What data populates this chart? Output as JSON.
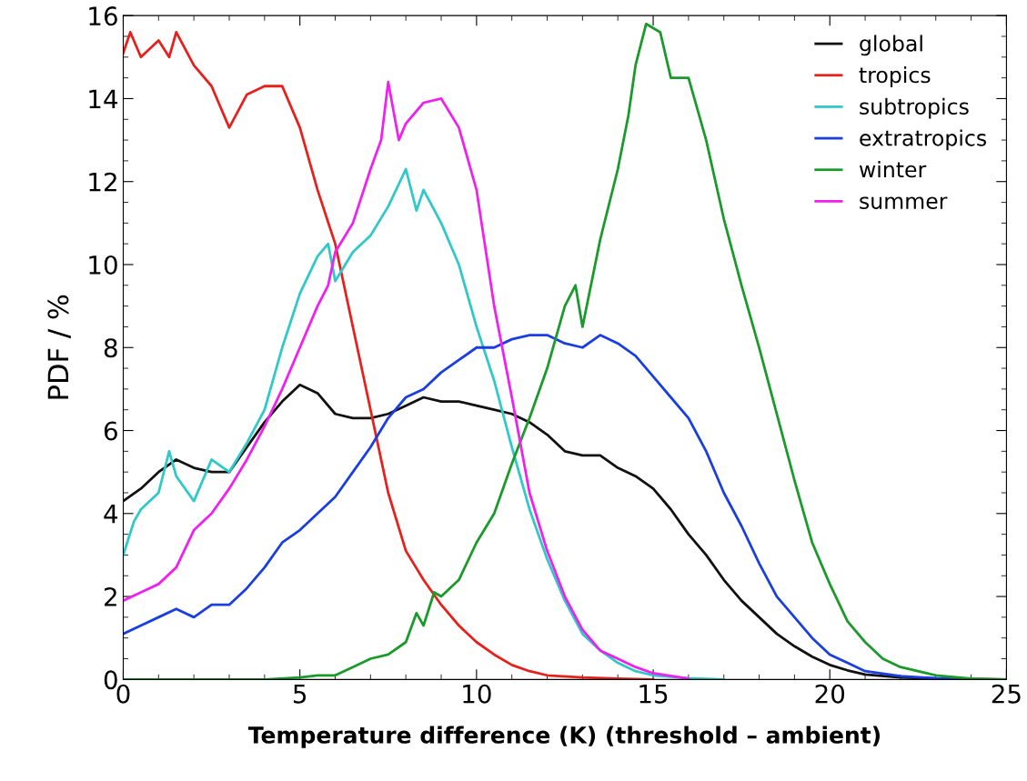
{
  "chart_data": {
    "type": "line",
    "xlabel": "Temperature difference (K) (threshold – ambient)",
    "ylabel": "PDF / %",
    "xlim": [
      0,
      25
    ],
    "xticks": [
      0,
      5,
      10,
      15,
      20,
      25
    ],
    "ylim": [
      0,
      16
    ],
    "yticks": [
      0,
      2,
      4,
      6,
      8,
      10,
      12,
      14,
      16
    ],
    "legend": "top right",
    "grid": false,
    "marker": "none",
    "line_style": "solid",
    "series": [
      {
        "name": "global",
        "color": "#111111",
        "x": [
          0,
          0.5,
          1,
          1.5,
          2,
          2.5,
          3,
          3.5,
          4,
          4.5,
          5,
          5.5,
          6,
          6.5,
          7,
          7.5,
          8,
          8.5,
          9,
          9.5,
          10,
          10.5,
          11,
          11.5,
          12,
          12.5,
          13,
          13.5,
          14,
          14.5,
          15,
          15.5,
          16,
          16.5,
          17,
          17.5,
          18,
          18.5,
          19,
          19.5,
          20,
          20.5,
          21,
          22,
          23,
          25
        ],
        "values": [
          4.3,
          4.6,
          5.0,
          5.3,
          5.1,
          5.0,
          5.0,
          5.6,
          6.2,
          6.7,
          7.1,
          6.9,
          6.4,
          6.3,
          6.3,
          6.4,
          6.6,
          6.8,
          6.7,
          6.7,
          6.6,
          6.5,
          6.4,
          6.2,
          5.9,
          5.5,
          5.4,
          5.4,
          5.1,
          4.9,
          4.6,
          4.1,
          3.5,
          3.0,
          2.4,
          1.9,
          1.5,
          1.1,
          0.8,
          0.55,
          0.35,
          0.22,
          0.12,
          0.05,
          0.02,
          0
        ]
      },
      {
        "name": "tropics",
        "color": "#e8201c",
        "x": [
          0,
          0.2,
          0.5,
          1,
          1.3,
          1.5,
          2,
          2.5,
          3,
          3.5,
          4,
          4.5,
          5,
          5.5,
          6,
          6.5,
          7,
          7.5,
          8,
          8.5,
          9,
          9.5,
          10,
          10.5,
          11,
          11.5,
          12,
          13,
          14,
          15
        ],
        "values": [
          15.1,
          15.6,
          15.0,
          15.4,
          15.0,
          15.6,
          14.8,
          14.3,
          13.3,
          14.1,
          14.3,
          14.3,
          13.3,
          11.8,
          10.5,
          8.5,
          6.5,
          4.5,
          3.1,
          2.4,
          1.8,
          1.3,
          0.9,
          0.6,
          0.35,
          0.2,
          0.1,
          0.05,
          0.02,
          0
        ]
      },
      {
        "name": "subtropics",
        "color": "#30c8c8",
        "x": [
          0,
          0.3,
          0.5,
          1,
          1.3,
          1.5,
          2,
          2.5,
          3,
          3.5,
          4,
          4.5,
          5,
          5.5,
          5.8,
          6,
          6.5,
          7,
          7.5,
          8,
          8.3,
          8.5,
          9,
          9.5,
          10,
          10.5,
          11,
          11.5,
          12,
          12.5,
          13,
          13.5,
          14,
          14.5,
          15,
          16,
          17
        ],
        "values": [
          3.0,
          3.8,
          4.1,
          4.5,
          5.5,
          4.9,
          4.3,
          5.3,
          5.0,
          5.7,
          6.5,
          8.0,
          9.3,
          10.2,
          10.5,
          9.6,
          10.3,
          10.7,
          11.4,
          12.3,
          11.3,
          11.8,
          11.0,
          10.0,
          8.5,
          7.2,
          5.6,
          4.1,
          2.9,
          1.9,
          1.1,
          0.7,
          0.4,
          0.2,
          0.1,
          0.03,
          0
        ]
      },
      {
        "name": "extratropics",
        "color": "#1a3ee0",
        "x": [
          0,
          0.5,
          1,
          1.5,
          2,
          2.5,
          3,
          3.5,
          4,
          4.5,
          5,
          5.5,
          6,
          6.5,
          7,
          7.5,
          8,
          8.5,
          9,
          9.5,
          10,
          10.5,
          11,
          11.5,
          12,
          12.5,
          13,
          13.5,
          14,
          14.5,
          15,
          15.5,
          16,
          16.5,
          17,
          17.5,
          18,
          18.5,
          19,
          19.5,
          20,
          20.5,
          21,
          22,
          23,
          24
        ],
        "values": [
          1.1,
          1.3,
          1.5,
          1.7,
          1.5,
          1.8,
          1.8,
          2.2,
          2.7,
          3.3,
          3.6,
          4.0,
          4.4,
          5.0,
          5.6,
          6.3,
          6.8,
          7.0,
          7.4,
          7.7,
          8.0,
          8.0,
          8.2,
          8.3,
          8.3,
          8.1,
          8.0,
          8.3,
          8.1,
          7.8,
          7.3,
          6.8,
          6.3,
          5.5,
          4.5,
          3.7,
          2.8,
          2.0,
          1.5,
          1.0,
          0.6,
          0.4,
          0.2,
          0.08,
          0.03,
          0
        ]
      },
      {
        "name": "winter",
        "color": "#1a9a2a",
        "x": [
          0,
          4,
          5,
          5.5,
          6,
          6.5,
          7,
          7.5,
          8,
          8.3,
          8.5,
          8.8,
          9,
          9.5,
          10,
          10.5,
          11,
          11.5,
          12,
          12.5,
          12.8,
          13,
          13.5,
          14,
          14.3,
          14.5,
          14.8,
          15.2,
          15.5,
          16,
          16.5,
          17,
          17.5,
          18,
          18.5,
          19,
          19.5,
          20,
          20.5,
          21,
          21.5,
          22,
          23,
          24,
          25
        ],
        "values": [
          0,
          0,
          0.05,
          0.1,
          0.1,
          0.3,
          0.5,
          0.6,
          0.9,
          1.6,
          1.3,
          2.1,
          2.0,
          2.4,
          3.3,
          4.0,
          5.2,
          6.3,
          7.5,
          9.0,
          9.5,
          8.5,
          10.6,
          12.3,
          13.6,
          14.8,
          15.8,
          15.6,
          14.5,
          14.5,
          13.0,
          11.1,
          9.5,
          8.0,
          6.4,
          4.8,
          3.3,
          2.3,
          1.4,
          0.9,
          0.5,
          0.3,
          0.1,
          0.02,
          0
        ]
      },
      {
        "name": "summer",
        "color": "#f020f0",
        "x": [
          0,
          0.5,
          1,
          1.5,
          2,
          2.5,
          3,
          3.5,
          4,
          4.5,
          5,
          5.5,
          5.8,
          6,
          6.5,
          7,
          7.3,
          7.5,
          7.8,
          8,
          8.5,
          9,
          9.5,
          10,
          10.5,
          11,
          11.5,
          12,
          12.5,
          13,
          13.5,
          14,
          14.5,
          15,
          16
        ],
        "values": [
          1.9,
          2.1,
          2.3,
          2.7,
          3.6,
          4.0,
          4.6,
          5.3,
          6.1,
          7.0,
          8.0,
          9.0,
          9.5,
          10.3,
          11.0,
          12.3,
          13.0,
          14.4,
          13.0,
          13.4,
          13.9,
          14.0,
          13.3,
          11.8,
          9.0,
          6.8,
          4.5,
          3.1,
          2.0,
          1.2,
          0.7,
          0.5,
          0.3,
          0.15,
          0.02
        ]
      }
    ]
  }
}
